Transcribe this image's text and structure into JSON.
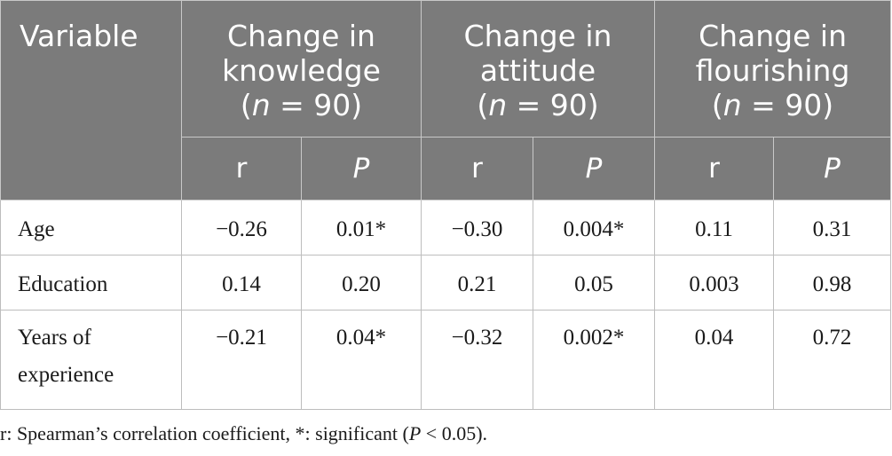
{
  "table": {
    "header": {
      "variable": "Variable",
      "groups": [
        {
          "line1": "Change in",
          "line2": "knowledge",
          "n_prefix": "(",
          "n_var": "n",
          "n_suffix": " = 90)"
        },
        {
          "line1": "Change in",
          "line2": "attitude",
          "n_prefix": "(",
          "n_var": "n",
          "n_suffix": " = 90)"
        },
        {
          "line1": "Change in",
          "line2": "flourishing",
          "n_prefix": "(",
          "n_var": "n",
          "n_suffix": " = 90)"
        }
      ],
      "sub": [
        "r",
        "P",
        "r",
        "P",
        "r",
        "P"
      ]
    },
    "rows": [
      {
        "label_line1": "Age",
        "label_line2": "",
        "cells": [
          "−0.26",
          "0.01*",
          "−0.30",
          "0.004*",
          "0.11",
          "0.31"
        ]
      },
      {
        "label_line1": "Education",
        "label_line2": "",
        "cells": [
          "0.14",
          "0.20",
          "0.21",
          "0.05",
          "0.003",
          "0.98"
        ]
      },
      {
        "label_line1": "Years of",
        "label_line2": "experience",
        "cells": [
          "−0.21",
          "0.04*",
          "−0.32",
          "0.002*",
          "0.04",
          "0.72"
        ]
      }
    ]
  },
  "footnote": {
    "part1": "r: Spearman’s correlation coefficient, *: significant (",
    "p_var": "P",
    "part2": " < 0.05)."
  }
}
